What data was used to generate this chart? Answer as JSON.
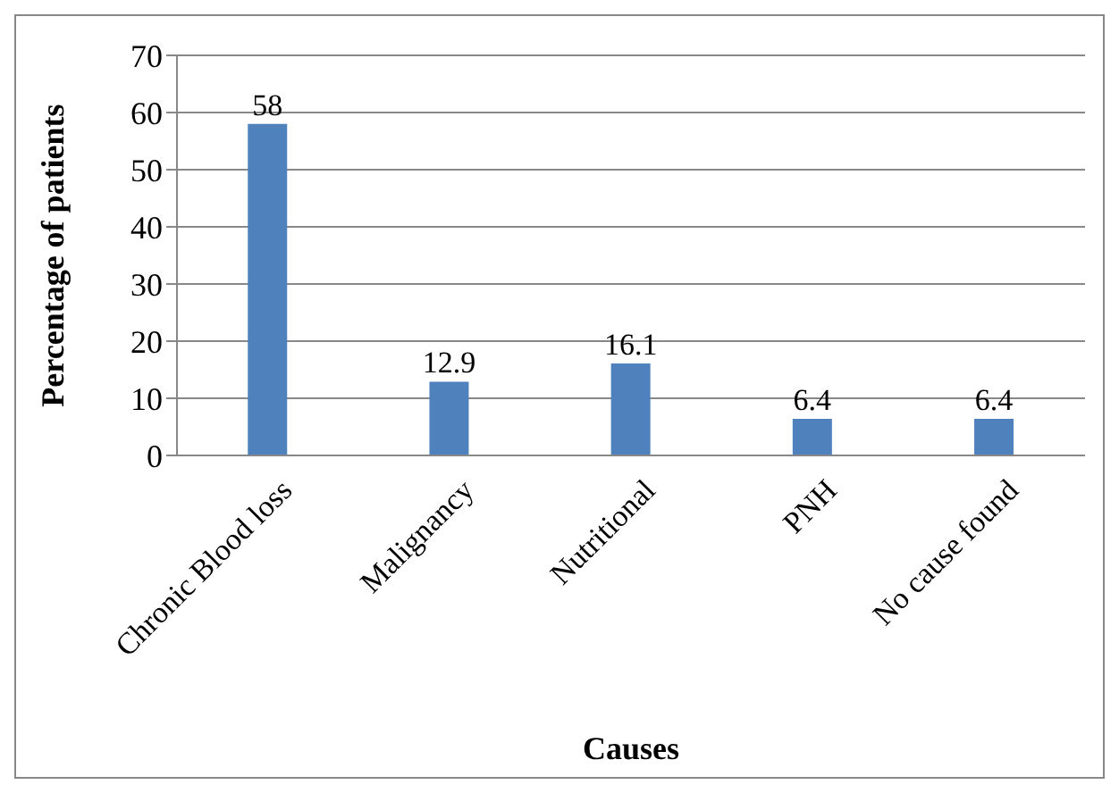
{
  "chart_data": {
    "type": "bar",
    "xlabel": "Causes",
    "ylabel": "Percentage of patients",
    "categories": [
      "Chronic Blood loss",
      "Malignancy",
      "Nutritional",
      "PNH",
      "No cause found"
    ],
    "values": [
      58,
      12.9,
      16.1,
      6.4,
      6.4
    ],
    "color": "#4f81bd",
    "ylim": [
      0,
      70
    ],
    "yticks": [
      0,
      10,
      20,
      30,
      40,
      50,
      60,
      70
    ],
    "grid": "y",
    "data_labels": true,
    "legend": false
  }
}
